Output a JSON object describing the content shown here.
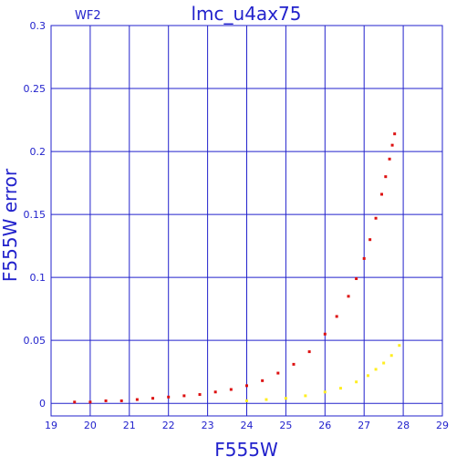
{
  "chart_data": {
    "type": "scatter",
    "title": "lmc_u4ax75",
    "chip_label": "WF2",
    "xlabel": "F555W",
    "ylabel": "F555W error",
    "xlim": [
      19,
      29
    ],
    "ylim": [
      -0.01,
      0.3
    ],
    "x_ticks": [
      "19",
      "20",
      "21",
      "22",
      "23",
      "24",
      "25",
      "26",
      "27",
      "28",
      "29"
    ],
    "y_ticks": [
      "0",
      "0.05",
      "0.1",
      "0.15",
      "0.2",
      "0.25",
      "0.3"
    ],
    "grid": true,
    "colors": {
      "axis": "#2222cc",
      "grid": "#2222cc",
      "red": "#dd1111",
      "yellow": "#ffee22"
    },
    "series": [
      {
        "color": "red",
        "x": [
          19.6,
          20.0,
          20.4,
          20.8,
          21.2,
          21.6,
          22.0,
          22.4,
          22.8,
          23.2,
          23.6,
          24.0,
          24.4,
          24.8,
          25.2,
          25.6,
          26.0,
          26.3,
          26.6,
          26.8,
          27.0,
          27.15,
          27.3,
          27.45,
          27.55,
          27.65,
          27.72,
          27.78
        ],
        "y": [
          0.001,
          0.001,
          0.002,
          0.002,
          0.003,
          0.004,
          0.005,
          0.006,
          0.007,
          0.009,
          0.011,
          0.014,
          0.018,
          0.024,
          0.031,
          0.041,
          0.055,
          0.069,
          0.085,
          0.099,
          0.115,
          0.13,
          0.147,
          0.166,
          0.18,
          0.194,
          0.205,
          0.214
        ]
      },
      {
        "color": "yellow",
        "x": [
          24.0,
          24.5,
          25.0,
          25.5,
          26.0,
          26.4,
          26.8,
          27.1,
          27.3,
          27.5,
          27.7,
          27.9
        ],
        "y": [
          0.002,
          0.003,
          0.004,
          0.006,
          0.009,
          0.012,
          0.017,
          0.022,
          0.027,
          0.032,
          0.038,
          0.046
        ]
      }
    ]
  }
}
